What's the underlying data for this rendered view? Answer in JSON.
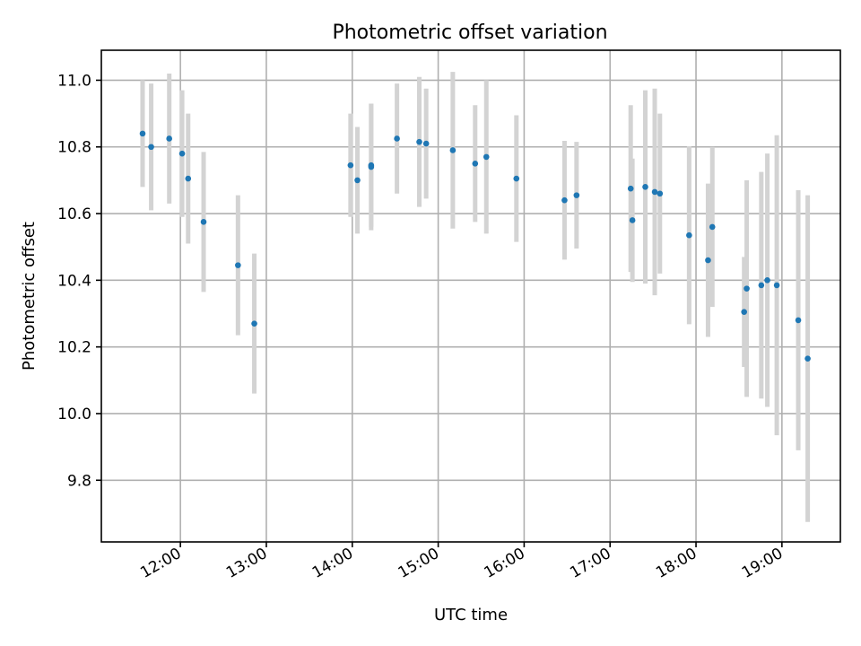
{
  "chart_data": {
    "type": "scatter",
    "title": "Photometric offset variation",
    "xlabel": "UTC time",
    "ylabel": "Photometric offset",
    "x_unit": "hours UTC",
    "xlim": [
      11.08,
      19.68
    ],
    "ylim": [
      9.615,
      11.09
    ],
    "grid": true,
    "x_ticks": [
      {
        "value": 12,
        "label": "12:00"
      },
      {
        "value": 13,
        "label": "13:00"
      },
      {
        "value": 14,
        "label": "14:00"
      },
      {
        "value": 15,
        "label": "15:00"
      },
      {
        "value": 16,
        "label": "16:00"
      },
      {
        "value": 17,
        "label": "17:00"
      },
      {
        "value": 18,
        "label": "18:00"
      },
      {
        "value": 19,
        "label": "19:00"
      }
    ],
    "y_ticks": [
      {
        "value": 9.8,
        "label": "9.8"
      },
      {
        "value": 10.0,
        "label": "10.0"
      },
      {
        "value": 10.2,
        "label": "10.2"
      },
      {
        "value": 10.4,
        "label": "10.4"
      },
      {
        "value": 10.6,
        "label": "10.6"
      },
      {
        "value": 10.8,
        "label": "10.8"
      },
      {
        "value": 11.0,
        "label": "11.0"
      }
    ],
    "colors": {
      "point": "#1f77b4",
      "errorbar": "#d3d3d3"
    },
    "points": [
      {
        "x": 11.56,
        "y": 10.84,
        "err": 0.16
      },
      {
        "x": 11.66,
        "y": 10.8,
        "err": 0.19
      },
      {
        "x": 11.87,
        "y": 10.825,
        "err": 0.195
      },
      {
        "x": 12.02,
        "y": 10.78,
        "err": 0.19
      },
      {
        "x": 12.09,
        "y": 10.705,
        "err": 0.195
      },
      {
        "x": 12.27,
        "y": 10.575,
        "err": 0.21
      },
      {
        "x": 12.67,
        "y": 10.445,
        "err": 0.21
      },
      {
        "x": 12.86,
        "y": 10.27,
        "err": 0.21
      },
      {
        "x": 13.98,
        "y": 10.745,
        "err": 0.155
      },
      {
        "x": 14.06,
        "y": 10.7,
        "err": 0.16
      },
      {
        "x": 14.22,
        "y": 10.745,
        "err": 0.185
      },
      {
        "x": 14.22,
        "y": 10.74,
        "err": 0.19
      },
      {
        "x": 14.52,
        "y": 10.825,
        "err": 0.165
      },
      {
        "x": 14.78,
        "y": 10.815,
        "err": 0.195
      },
      {
        "x": 14.86,
        "y": 10.81,
        "err": 0.165
      },
      {
        "x": 15.17,
        "y": 10.79,
        "err": 0.235
      },
      {
        "x": 15.43,
        "y": 10.75,
        "err": 0.175
      },
      {
        "x": 15.56,
        "y": 10.77,
        "err": 0.23
      },
      {
        "x": 15.91,
        "y": 10.705,
        "err": 0.19
      },
      {
        "x": 16.47,
        "y": 10.64,
        "err": 0.178
      },
      {
        "x": 16.61,
        "y": 10.655,
        "err": 0.16
      },
      {
        "x": 17.24,
        "y": 10.675,
        "err": 0.25
      },
      {
        "x": 17.26,
        "y": 10.58,
        "err": 0.185
      },
      {
        "x": 17.41,
        "y": 10.68,
        "err": 0.29
      },
      {
        "x": 17.52,
        "y": 10.665,
        "err": 0.31
      },
      {
        "x": 17.58,
        "y": 10.66,
        "err": 0.24
      },
      {
        "x": 17.92,
        "y": 10.535,
        "err": 0.267
      },
      {
        "x": 18.14,
        "y": 10.46,
        "err": 0.23
      },
      {
        "x": 18.19,
        "y": 10.56,
        "err": 0.24
      },
      {
        "x": 18.56,
        "y": 10.305,
        "err": 0.165
      },
      {
        "x": 18.59,
        "y": 10.375,
        "err": 0.325
      },
      {
        "x": 18.76,
        "y": 10.385,
        "err": 0.34
      },
      {
        "x": 18.83,
        "y": 10.4,
        "err": 0.38
      },
      {
        "x": 18.94,
        "y": 10.385,
        "err": 0.45
      },
      {
        "x": 19.19,
        "y": 10.28,
        "err": 0.39
      },
      {
        "x": 19.3,
        "y": 10.165,
        "err": 0.49
      }
    ]
  }
}
